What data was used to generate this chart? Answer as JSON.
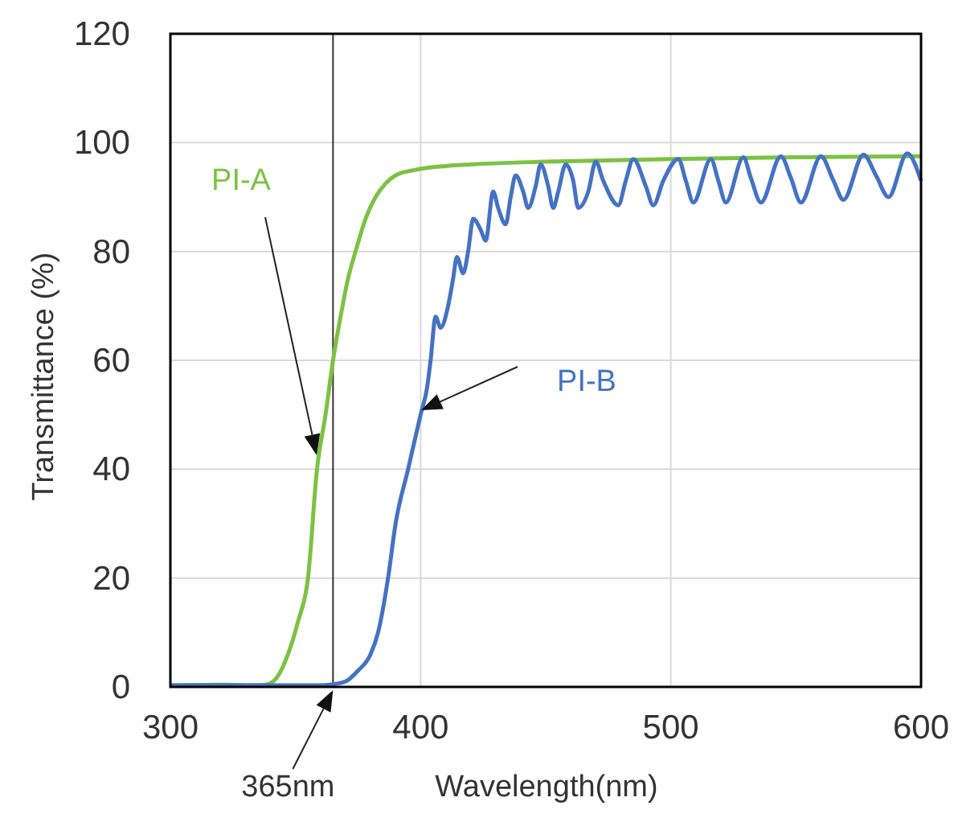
{
  "chart_data": {
    "type": "line",
    "xlabel": "Wavelength(nm)",
    "ylabel": "Transmittance (%)",
    "xlim": [
      300,
      600
    ],
    "xticks": [
      300,
      400,
      500,
      600
    ],
    "ylim": [
      0,
      120
    ],
    "yticks": [
      0,
      20,
      40,
      60,
      80,
      100,
      120
    ],
    "grid": true,
    "line_style": "solid",
    "marker": "none",
    "series": [
      {
        "name": "PI-A",
        "color": "#7cc242",
        "x": [
          300,
          320,
          335,
          339,
          343,
          347,
          351,
          355,
          358.6,
          362,
          365,
          368,
          371,
          374,
          378,
          382,
          386,
          390,
          398,
          410,
          420,
          450,
          500,
          550,
          600
        ],
        "values": [
          0.3,
          0.4,
          0.3,
          0.5,
          2,
          6,
          12,
          20,
          40,
          50,
          60,
          68,
          75,
          80,
          86,
          90,
          92.5,
          94,
          95,
          95.7,
          96,
          96.5,
          97,
          97.3,
          97.5
        ]
      },
      {
        "name": "PI-B",
        "color": "#4472c4",
        "x": [
          300,
          330,
          360,
          365,
          370,
          375,
          380,
          383,
          387,
          390,
          395,
          400,
          402.6,
          404,
          406,
          408,
          411,
          413,
          414.5,
          417,
          419,
          421,
          424,
          426,
          429,
          431,
          434,
          436,
          438,
          441,
          443,
          446,
          448,
          451,
          453,
          455,
          458,
          461,
          463,
          467,
          470,
          473,
          479,
          482,
          485,
          490,
          493,
          497,
          503,
          506,
          509,
          516,
          519,
          522,
          529,
          532,
          536,
          544,
          548,
          552,
          560,
          565,
          569,
          577,
          582,
          587,
          594.5,
          600
        ],
        "values": [
          0.3,
          0.3,
          0.3,
          0.5,
          1,
          3,
          6,
          10,
          20,
          30,
          40,
          50,
          55,
          60,
          68,
          66,
          70,
          75,
          79,
          76,
          80,
          86,
          84,
          82,
          91,
          88,
          85,
          90,
          94,
          91,
          88,
          92,
          96,
          92,
          88,
          91,
          96,
          93,
          88,
          91,
          96.5,
          93,
          88.5,
          93,
          97,
          92,
          88.5,
          93,
          97,
          93,
          89,
          97,
          93,
          89,
          97.3,
          93.5,
          89,
          97.5,
          93.5,
          89,
          97.5,
          93,
          89.5,
          97.8,
          94,
          90,
          98,
          93
        ]
      }
    ],
    "ref_lines": [
      {
        "axis": "x",
        "value": 365,
        "label": "365nm",
        "color": "#333333"
      }
    ]
  }
}
